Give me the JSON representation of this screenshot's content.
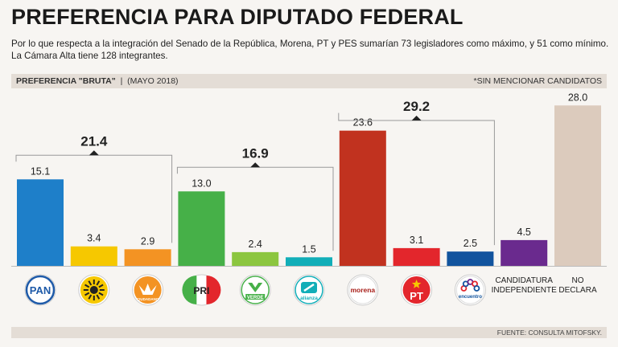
{
  "header": {
    "title": "PREFERENCIA PARA DIPUTADO FEDERAL",
    "subtitle": "Por lo que respecta a la integración del Senado de la República, Morena, PT y PES sumarían 73 legisladores como máximo, y 51 como mínimo. La Cámara Alta tiene 128 integrantes.",
    "band_bold": "PREFERENCIA \"BRUTA\"",
    "band_sep": "|",
    "band_date": "(MAYO 2018)",
    "band_note": "*SIN MENCIONAR CANDIDATOS",
    "source": "FUENTE: CONSULTA MITOFSKY."
  },
  "chart_data": {
    "type": "bar",
    "title": "PREFERENCIA PARA DIPUTADO FEDERAL",
    "ylim": [
      0,
      30
    ],
    "categories": [
      "PAN",
      "PRD",
      "MC",
      "PRI",
      "PVEM",
      "NA",
      "MORENA",
      "PT",
      "PES",
      "CANDIDATURA INDEPENDIENTE",
      "NO DECLARA"
    ],
    "values": [
      15.1,
      3.4,
      2.9,
      13.0,
      2.4,
      1.5,
      23.6,
      3.1,
      2.5,
      4.5,
      28.0
    ],
    "value_labels": [
      "15.1",
      "3.4",
      "2.9",
      "13.0",
      "2.4",
      "1.5",
      "23.6",
      "3.1",
      "2.5",
      "4.5",
      "28.0"
    ],
    "colors": [
      "#1e7fc9",
      "#f6c800",
      "#f39323",
      "#46b048",
      "#8cc63f",
      "#12aeb8",
      "#c1321f",
      "#e3262c",
      "#12549e",
      "#6a2a8e",
      "#dccbbd"
    ],
    "groups": [
      {
        "label": "21.4",
        "value": 21.4,
        "members": [
          0,
          1,
          2
        ]
      },
      {
        "label": "16.9",
        "value": 16.9,
        "members": [
          3,
          4,
          5
        ]
      },
      {
        "label": "29.2",
        "value": 29.2,
        "members": [
          6,
          7,
          8
        ]
      }
    ],
    "logos": [
      {
        "icon": "pan-logo-icon",
        "text": "PAN",
        "color": "#1e5aa8"
      },
      {
        "icon": "prd-logo-icon",
        "text": "",
        "color": "#f6c800"
      },
      {
        "icon": "mc-logo-icon",
        "text": "CIUDADANO",
        "color": "#f39323"
      },
      {
        "icon": "pri-logo-icon",
        "text": "PRI",
        "color": "#46b048"
      },
      {
        "icon": "verde-logo-icon",
        "text": "VERDE",
        "color": "#46b048"
      },
      {
        "icon": "alianza-logo-icon",
        "text": "alianza",
        "color": "#12aeb8"
      },
      {
        "icon": "morena-logo-icon",
        "text": "morena",
        "color": "#a8201a"
      },
      {
        "icon": "pt-logo-icon",
        "text": "PT",
        "color": "#e3262c"
      },
      {
        "icon": "pes-logo-icon",
        "text": "encuentro",
        "color": "#6a2a8e"
      }
    ],
    "captions": [
      {
        "index": 9,
        "lines": [
          "CANDIDATURA",
          "INDEPENDIENTE"
        ]
      },
      {
        "index": 10,
        "lines": [
          "NO",
          "DECLARA"
        ]
      }
    ]
  }
}
